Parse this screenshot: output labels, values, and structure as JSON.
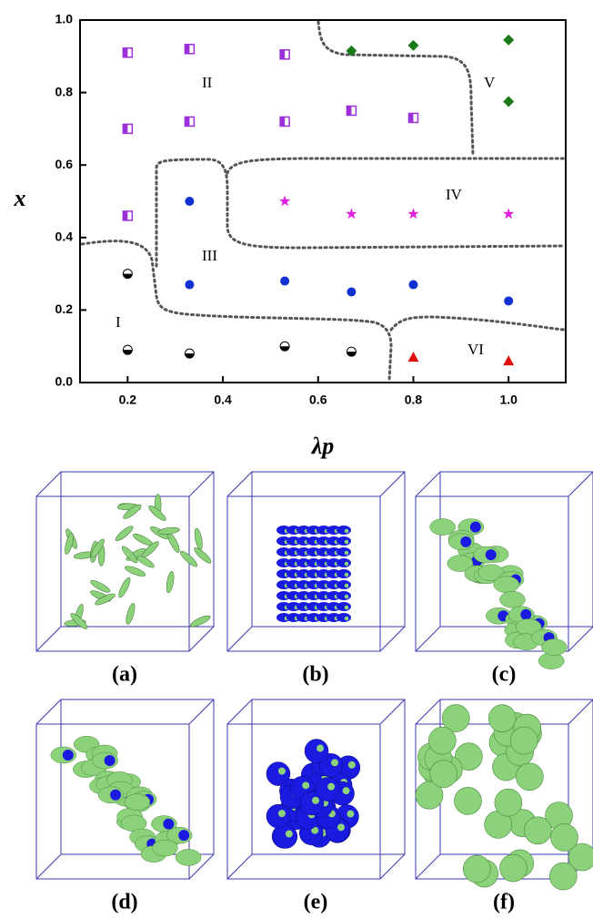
{
  "chart_data": {
    "type": "scatter",
    "xlabel": "λp",
    "ylabel": "x",
    "xlim": [
      0.1,
      1.12
    ],
    "ylim": [
      0,
      1
    ],
    "xticks": [
      0.2,
      0.4,
      0.6,
      0.8,
      {
        "value": 1,
        "label": "1.0"
      }
    ],
    "yticks": [
      {
        "value": 0,
        "label": "0.0"
      },
      0.2,
      0.4,
      0.6,
      0.8,
      {
        "value": 1,
        "label": "1.0"
      }
    ],
    "annotations": [
      "I",
      "II",
      "III",
      "IV",
      "V",
      "VI"
    ],
    "series": [
      {
        "marker": "half-square",
        "color": "#9b30d9",
        "x": [
          0.2,
          0.33,
          0.53,
          0.2,
          0.33,
          0.53,
          0.67,
          0.8,
          0.2
        ],
        "values": [
          0.91,
          0.92,
          0.905,
          0.7,
          0.72,
          0.72,
          0.75,
          0.73,
          0.46
        ]
      },
      {
        "marker": "diamond",
        "color": "#1a7a1a",
        "x": [
          0.67,
          0.8,
          1.0,
          1.0
        ],
        "values": [
          0.915,
          0.93,
          0.945,
          0.775
        ]
      },
      {
        "marker": "star",
        "color": "#e020e0",
        "x": [
          0.53,
          0.67,
          0.8,
          1.0
        ],
        "values": [
          0.5,
          0.465,
          0.465,
          0.465
        ]
      },
      {
        "marker": "circle",
        "color": "#1030d0",
        "x": [
          0.33,
          0.33,
          0.53,
          0.67,
          0.8,
          1.0
        ],
        "values": [
          0.5,
          0.27,
          0.28,
          0.25,
          0.27,
          0.225
        ]
      },
      {
        "marker": "half-circle",
        "color": "#000000",
        "x": [
          0.2,
          0.2,
          0.33,
          0.53,
          0.67
        ],
        "values": [
          0.3,
          0.09,
          0.08,
          0.1,
          0.085
        ]
      },
      {
        "marker": "triangle",
        "color": "#e01010",
        "x": [
          0.8,
          1.0
        ],
        "values": [
          0.07,
          0.06
        ]
      }
    ]
  },
  "panels": [
    {
      "label": "(a)"
    },
    {
      "label": "(b)"
    },
    {
      "label": "(c)"
    },
    {
      "label": "(d)"
    },
    {
      "label": "(e)"
    },
    {
      "label": "(f)"
    }
  ]
}
